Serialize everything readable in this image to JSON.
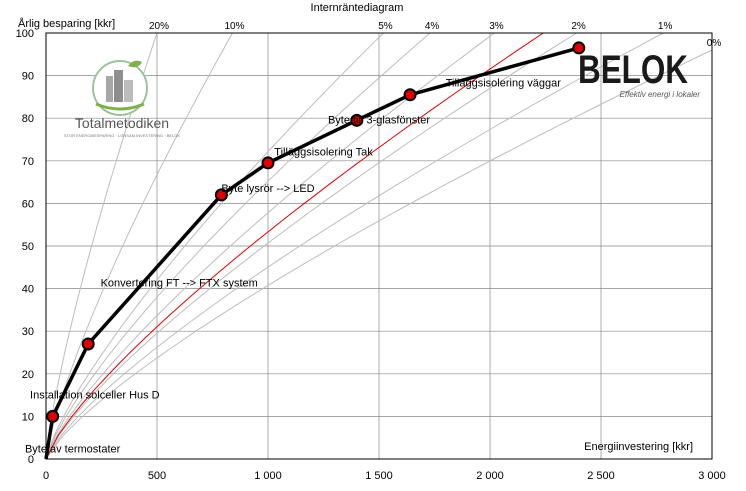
{
  "chart_data": {
    "type": "line",
    "title": "Internräntediagram",
    "ylabel": "Årlig besparing [kkr]",
    "xlabel": "Energiinvestering [kkr]",
    "xlim": [
      0,
      3000
    ],
    "ylim": [
      0,
      100
    ],
    "x_ticks": [
      0,
      500,
      1000,
      1500,
      2000,
      2500,
      3000
    ],
    "x_tick_labels": [
      "0",
      "500",
      "1 000",
      "1 500",
      "2 000",
      "2 500",
      "3 000"
    ],
    "y_ticks": [
      0,
      10,
      20,
      30,
      40,
      50,
      60,
      70,
      80,
      90,
      100
    ],
    "y_tick_labels": [
      "0",
      "10",
      "20",
      "30",
      "40",
      "50",
      "60",
      "70",
      "80",
      "90",
      "100"
    ],
    "grid_x": true,
    "grid_y": true,
    "series": [
      {
        "values_x": [
          0,
          30,
          190,
          790,
          1000,
          1400,
          1640,
          2400
        ],
        "values_y": [
          0,
          10,
          27,
          62,
          69.5,
          79.5,
          85.5,
          96.5
        ],
        "color": "#000000"
      }
    ],
    "irr_curves": [
      {
        "label": "20%",
        "end_x": 500,
        "end_y": 100
      },
      {
        "label": "10%",
        "end_x": 840,
        "end_y": 100
      },
      {
        "label": "5%",
        "end_x": 1520,
        "end_y": 100
      },
      {
        "label": "4%",
        "end_x": 1730,
        "end_y": 100
      },
      {
        "label": "3%",
        "end_x": 2020,
        "end_y": 100
      },
      {
        "label": "2%",
        "end_x": 2390,
        "end_y": 100
      },
      {
        "label": "1%",
        "end_x": 2780,
        "end_y": 100
      },
      {
        "label": "0%",
        "end_x": 3000,
        "end_y": 96
      }
    ],
    "highlighted_curve": {
      "label": "",
      "end_x": 2240,
      "end_y": 100,
      "color": "#e00000"
    },
    "annotations": [
      {
        "text": "Byte av termostater",
        "x": 120,
        "y": 1.5
      },
      {
        "text": "Installation solceller Hus D",
        "x": 220,
        "y": 14.2
      },
      {
        "text": "Konvertering FT --> FTX system",
        "x": 600,
        "y": 40.5
      },
      {
        "text": "Byte lysrör --> LED",
        "x": 1000,
        "y": 62.7
      },
      {
        "text": "Tilläggsisolering Tak",
        "x": 1250,
        "y": 71.2
      },
      {
        "text": "Byte till 3-glasfönster",
        "x": 1500,
        "y": 78.8
      },
      {
        "text": "Tilläggsisolering väggar",
        "x": 2060,
        "y": 87.5
      }
    ]
  },
  "logos": {
    "totalmetodiken": {
      "name": "Totalmetodiken",
      "tagline": "STOR ENERGIBESPARING · LÖNSAM INVESTERING · BELOK"
    },
    "belok": {
      "name": "BELOK",
      "tagline": "Effektiv energi i lokaler"
    }
  },
  "colors": {
    "irr_curve": "#bdbdbd",
    "highlight": "#e00000",
    "marker_fill": "#e00000",
    "series_line": "#000000",
    "grid": "#888888"
  }
}
